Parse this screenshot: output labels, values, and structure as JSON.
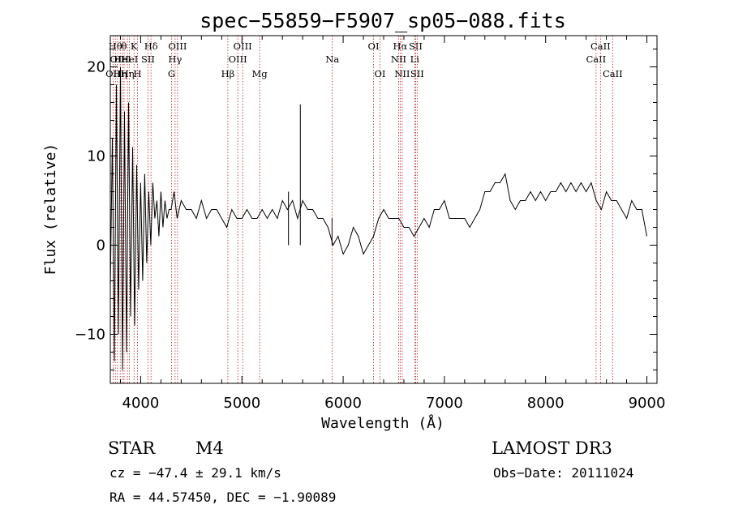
{
  "chart_data": {
    "type": "line",
    "title": "spec−55859−F5907_sp05−088.fits",
    "xlabel": "Wavelength (Å)",
    "ylabel": "Flux (relative)",
    "xlim": [
      3700,
      9100
    ],
    "ylim": [
      -15.5,
      23.5
    ],
    "xticks": [
      4000,
      5000,
      6000,
      7000,
      8000,
      9000
    ],
    "xtick_labels": [
      "4000",
      "5000",
      "6000",
      "7000",
      "8000",
      "9000"
    ],
    "yticks": [
      -10,
      0,
      10,
      20
    ],
    "ytick_labels": [
      "−10",
      "0",
      "10",
      "20"
    ],
    "grid": false,
    "line_color": "#000000",
    "marker_color": "#b22222",
    "series": [
      {
        "name": "flux",
        "x": [
          3700,
          3720,
          3740,
          3760,
          3780,
          3800,
          3820,
          3840,
          3860,
          3880,
          3900,
          3920,
          3940,
          3960,
          3980,
          4000,
          4020,
          4040,
          4060,
          4080,
          4100,
          4120,
          4140,
          4160,
          4180,
          4200,
          4220,
          4240,
          4260,
          4280,
          4300,
          4330,
          4360,
          4400,
          4450,
          4500,
          4550,
          4600,
          4650,
          4700,
          4750,
          4800,
          4850,
          4900,
          4950,
          5000,
          5050,
          5100,
          5150,
          5200,
          5250,
          5300,
          5350,
          5400,
          5450,
          5500,
          5550,
          5600,
          5650,
          5700,
          5750,
          5800,
          5850,
          5900,
          5950,
          6000,
          6050,
          6100,
          6150,
          6200,
          6250,
          6300,
          6350,
          6400,
          6450,
          6500,
          6550,
          6600,
          6650,
          6700,
          6750,
          6800,
          6850,
          6900,
          6950,
          7000,
          7050,
          7100,
          7150,
          7200,
          7250,
          7300,
          7350,
          7400,
          7450,
          7500,
          7550,
          7600,
          7650,
          7700,
          7750,
          7800,
          7850,
          7900,
          7950,
          8000,
          8050,
          8100,
          8150,
          8200,
          8250,
          8300,
          8350,
          8400,
          8450,
          8500,
          8550,
          8600,
          8650,
          8700,
          8750,
          8800,
          8850,
          8900,
          8950,
          9000
        ],
        "y": [
          -5,
          12,
          -13,
          18,
          -10,
          20,
          -14,
          15,
          -12,
          16,
          -8,
          11,
          -9,
          9,
          -5,
          7,
          -4,
          8,
          -2,
          6,
          0,
          7,
          3,
          5,
          1,
          6,
          2,
          5,
          3,
          4,
          4,
          6,
          3,
          5,
          4,
          4,
          3,
          5,
          3,
          4,
          4,
          3,
          2,
          4,
          3,
          3,
          4,
          3,
          3,
          4,
          3,
          4,
          3,
          5,
          4,
          5,
          3,
          5,
          4,
          4,
          3,
          3,
          2,
          0,
          1,
          -1,
          0,
          2,
          1,
          -1,
          0,
          1,
          3,
          4,
          3,
          3,
          3,
          2,
          2,
          1,
          2,
          3,
          2,
          4,
          4,
          5,
          3,
          3,
          3,
          3,
          2,
          3,
          4,
          6,
          6,
          7,
          7,
          8,
          5,
          4,
          5,
          5,
          6,
          5,
          6,
          5,
          6,
          6,
          7,
          6,
          7,
          6,
          7,
          6,
          7,
          5,
          4,
          6,
          5,
          5,
          4,
          3,
          5,
          4,
          4,
          1
        ]
      }
    ],
    "spikes": [
      {
        "x": 5460,
        "y": 6.0
      },
      {
        "x": 5577,
        "y": 15.8
      },
      {
        "x": 5890,
        "y": 3.0
      }
    ],
    "line_markers": [
      {
        "x": 3727,
        "label": "OII",
        "row": 3
      },
      {
        "x": 3750,
        "label": "Hθ",
        "row": 1
      },
      {
        "x": 3770,
        "label": "OII",
        "row": 2
      },
      {
        "x": 3798,
        "label": "Hη",
        "row": 3
      },
      {
        "x": 3820,
        "label": "HeI",
        "row": 2
      },
      {
        "x": 3836,
        "label": "θ",
        "row": 1
      },
      {
        "x": 3869,
        "label": "Hη",
        "row": 3
      },
      {
        "x": 3889,
        "label": "HeI",
        "row": 2
      },
      {
        "x": 3934,
        "label": "K",
        "row": 1
      },
      {
        "x": 3969,
        "label": "H",
        "row": 3
      },
      {
        "x": 4072,
        "label": "SII",
        "row": 2
      },
      {
        "x": 4102,
        "label": "Hδ",
        "row": 1
      },
      {
        "x": 4305,
        "label": "G",
        "row": 3
      },
      {
        "x": 4340,
        "label": "Hγ",
        "row": 2
      },
      {
        "x": 4364,
        "label": "OIII",
        "row": 1
      },
      {
        "x": 4861,
        "label": "Hβ",
        "row": 3
      },
      {
        "x": 4959,
        "label": "OIII",
        "row": 2
      },
      {
        "x": 5007,
        "label": "OIII",
        "row": 1
      },
      {
        "x": 5175,
        "label": "Mg",
        "row": 3
      },
      {
        "x": 5893,
        "label": "Na",
        "row": 2
      },
      {
        "x": 6300,
        "label": "OI",
        "row": 1
      },
      {
        "x": 6364,
        "label": "OI",
        "row": 3
      },
      {
        "x": 6548,
        "label": "NII",
        "row": 2
      },
      {
        "x": 6563,
        "label": "Hα",
        "row": 1
      },
      {
        "x": 6583,
        "label": "NII",
        "row": 3
      },
      {
        "x": 6707,
        "label": "Li",
        "row": 2
      },
      {
        "x": 6716,
        "label": "SII",
        "row": 1
      },
      {
        "x": 6731,
        "label": "SII",
        "row": 3
      },
      {
        "x": 8498,
        "label": "CaII",
        "row": 2
      },
      {
        "x": 8542,
        "label": "CaII",
        "row": 1
      },
      {
        "x": 8662,
        "label": "CaII",
        "row": 3
      }
    ]
  },
  "info": {
    "class_label": "STAR",
    "subclass": "M4",
    "survey": "LAMOST DR3",
    "cz": "cz = −47.4 ± 29.1 km/s",
    "obs_date": "Obs−Date: 20111024",
    "coords": "RA =  44.57450, DEC =  −1.90089"
  }
}
